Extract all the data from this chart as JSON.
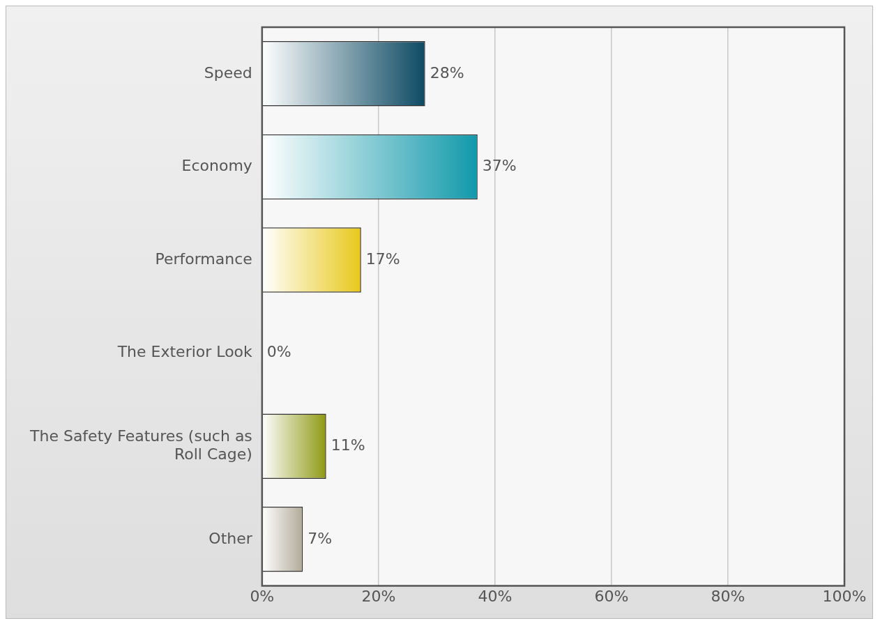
{
  "chart_data": {
    "type": "bar",
    "orientation": "horizontal",
    "categories": [
      "Speed",
      "Economy",
      "Performance",
      "The Exterior Look",
      "The Safety Features (such as Roll Cage)",
      "Other"
    ],
    "values": [
      28,
      37,
      17,
      0,
      11,
      7
    ],
    "colors": [
      "#0d4a63",
      "#1199aa",
      "#e8c81a",
      "#7f9fb0",
      "#8f9a14",
      "#b0aa98"
    ],
    "value_labels": [
      "28%",
      "37%",
      "17%",
      "0%",
      "11%",
      "7%"
    ],
    "xlim": [
      0,
      100
    ],
    "xticks": [
      {
        "value": 0,
        "label": "0%"
      },
      {
        "value": 20,
        "label": "20%"
      },
      {
        "value": 40,
        "label": "40%"
      },
      {
        "value": 60,
        "label": "60%"
      },
      {
        "value": 80,
        "label": "80%"
      },
      {
        "value": 100,
        "label": "100%"
      }
    ],
    "grid": "x",
    "legend": false
  }
}
